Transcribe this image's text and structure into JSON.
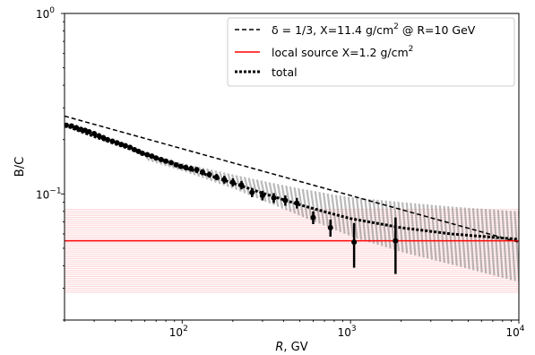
{
  "chart_data": {
    "type": "line",
    "xlabel": "R, GV",
    "xlabel_italic_part": "R",
    "xlabel_rest": ", GV",
    "ylabel": "B/C",
    "xscale": "log",
    "yscale": "log",
    "xlim": [
      20,
      10000
    ],
    "ylim": [
      0.02,
      1.0
    ],
    "x_ticks": [
      {
        "base": "10",
        "exp": "2"
      },
      {
        "base": "10",
        "exp": "3"
      },
      {
        "base": "10",
        "exp": "4"
      }
    ],
    "y_ticks": [
      {
        "base": "10",
        "exp": "0",
        "value": 1.0
      },
      {
        "base": "10",
        "exp": "−1",
        "value": 0.1
      }
    ],
    "grid": false,
    "legend": {
      "placement": "top-right",
      "entries": [
        {
          "style": "dashed",
          "color": "#000000",
          "pre": "δ = 1/3, X=11.4 g/cm",
          "sup": "2",
          "post": " @ R=10 GeV"
        },
        {
          "style": "solid",
          "color": "#ff0000",
          "pre": "local source X=1.2 g/cm",
          "sup": "2",
          "post": ""
        },
        {
          "style": "dotted",
          "color": "#000000",
          "pre": "total",
          "sup": "",
          "post": ""
        }
      ]
    },
    "series": [
      {
        "style": "dashed",
        "color": "#000000",
        "x": [
          20,
          10000
        ],
        "y": [
          0.27,
          0.054
        ]
      },
      {
        "style": "solid",
        "color": "#ff0000",
        "x": [
          20,
          10000
        ],
        "y": [
          0.055,
          0.055
        ]
      },
      {
        "style": "dotted",
        "color": "#000000",
        "x": [
          20,
          30,
          50,
          80,
          100,
          150,
          200,
          300,
          500,
          800,
          1000,
          2000,
          4000,
          10000
        ],
        "y": [
          0.24,
          0.208,
          0.176,
          0.152,
          0.141,
          0.125,
          0.115,
          0.101,
          0.087,
          0.077,
          0.073,
          0.065,
          0.06,
          0.056
        ]
      }
    ],
    "bands": [
      {
        "name": "local source band",
        "color": "#ffb0b8",
        "x": [
          20,
          10000
        ],
        "y_low": [
          0.028,
          0.028
        ],
        "y_high": [
          0.082,
          0.082
        ]
      },
      {
        "name": "model band",
        "color": "#808080",
        "x": [
          60,
          100,
          200,
          300,
          500,
          800,
          1000,
          2000,
          4000,
          10000
        ],
        "y_low": [
          0.153,
          0.132,
          0.105,
          0.09,
          0.074,
          0.062,
          0.057,
          0.047,
          0.04,
          0.032
        ],
        "y_high": [
          0.165,
          0.148,
          0.128,
          0.118,
          0.107,
          0.099,
          0.096,
          0.09,
          0.085,
          0.08
        ]
      }
    ],
    "data_points": {
      "x": [
        20.5,
        22,
        23.5,
        25,
        26.5,
        28,
        30,
        32,
        34,
        36,
        38.5,
        41,
        43.5,
        46,
        49,
        52,
        55,
        58,
        62,
        66,
        70,
        75,
        80,
        86,
        92,
        98,
        105,
        113,
        122,
        132,
        145,
        160,
        178,
        200,
        225,
        260,
        300,
        350,
        410,
        480,
        600,
        760,
        1050,
        1850
      ],
      "y": [
        0.24,
        0.238,
        0.233,
        0.228,
        0.225,
        0.221,
        0.216,
        0.21,
        0.205,
        0.2,
        0.196,
        0.192,
        0.188,
        0.185,
        0.181,
        0.176,
        0.172,
        0.168,
        0.165,
        0.162,
        0.158,
        0.155,
        0.152,
        0.149,
        0.145,
        0.142,
        0.14,
        0.138,
        0.136,
        0.132,
        0.128,
        0.124,
        0.12,
        0.116,
        0.112,
        0.102,
        0.098,
        0.095,
        0.092,
        0.089,
        0.074,
        0.065,
        0.054,
        0.055
      ],
      "yerr": [
        0.004,
        0.004,
        0.004,
        0.004,
        0.004,
        0.004,
        0.004,
        0.004,
        0.004,
        0.004,
        0.004,
        0.004,
        0.004,
        0.004,
        0.004,
        0.004,
        0.004,
        0.004,
        0.004,
        0.004,
        0.004,
        0.004,
        0.004,
        0.004,
        0.004,
        0.004,
        0.005,
        0.005,
        0.005,
        0.005,
        0.005,
        0.005,
        0.006,
        0.006,
        0.006,
        0.006,
        0.006,
        0.006,
        0.006,
        0.006,
        0.006,
        0.007,
        0.015,
        0.019
      ]
    }
  }
}
